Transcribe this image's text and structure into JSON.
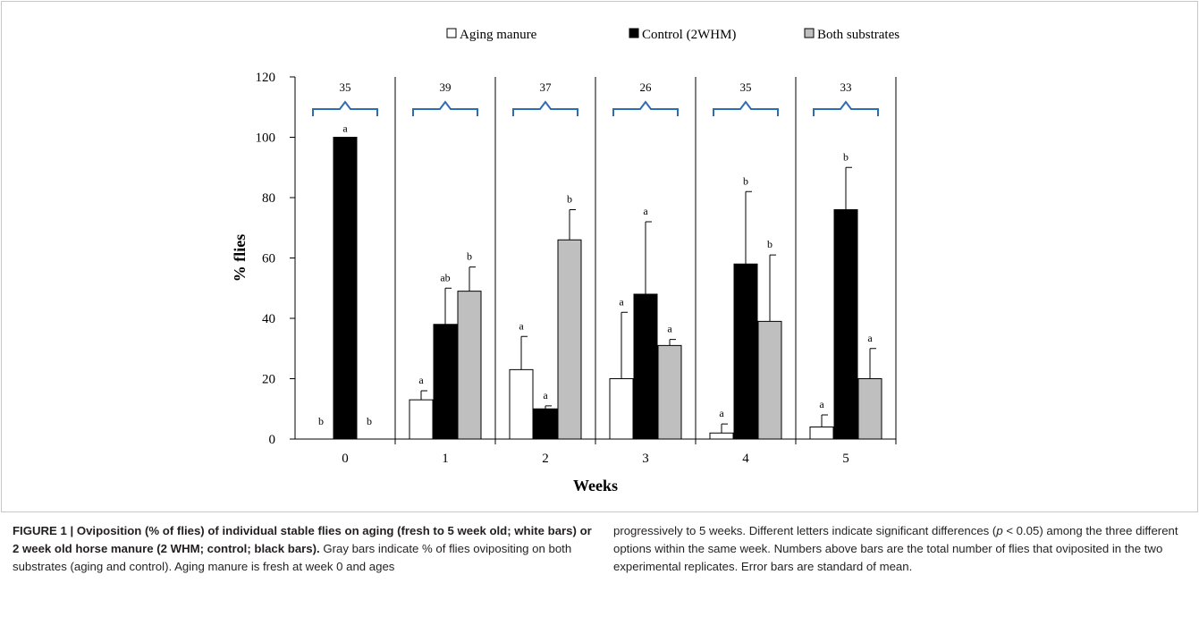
{
  "chart_data": {
    "type": "bar",
    "xlabel": "Weeks",
    "ylabel": "% flies",
    "ylim": [
      0,
      120
    ],
    "yticks": [
      0,
      20,
      40,
      60,
      80,
      100,
      120
    ],
    "categories": [
      "0",
      "1",
      "2",
      "3",
      "4",
      "5"
    ],
    "series": [
      {
        "name": "Aging manure",
        "color": "#ffffff",
        "values": [
          0,
          13,
          23,
          20,
          2,
          4
        ],
        "errors": [
          0,
          3,
          11,
          22,
          3,
          4
        ],
        "letters": [
          "b",
          "a",
          "a",
          "a",
          "a",
          "a"
        ]
      },
      {
        "name": "Control (2WHM)",
        "color": "#000000",
        "values": [
          100,
          38,
          10,
          48,
          58,
          76
        ],
        "errors": [
          0,
          12,
          1,
          24,
          24,
          14
        ],
        "letters": [
          "a",
          "ab",
          "a",
          "a",
          "b",
          "b"
        ]
      },
      {
        "name": "Both substrates",
        "color": "#bfbfbf",
        "values": [
          0,
          49,
          66,
          31,
          39,
          20
        ],
        "errors": [
          0,
          8,
          10,
          2,
          22,
          10
        ],
        "letters": [
          "b",
          "b",
          "b",
          "a",
          "b",
          "a"
        ]
      }
    ],
    "group_totals": [
      "35",
      "39",
      "37",
      "26",
      "35",
      "33"
    ],
    "legend_position": "top",
    "grid": false
  },
  "caption": {
    "lead": "FIGURE 1 | Oviposition (% of flies) of individual stable flies on aging (fresh to 5 week old; white bars) or 2 week old horse manure (2 WHM; control; black bars).",
    "left_rest": " Gray bars indicate % of flies ovipositing on both substrates (aging and control). Aging manure is fresh at week 0 and ages",
    "right_a": "progressively to 5 weeks. Different letters indicate significant differences (",
    "right_p": "p",
    "right_b": " < 0.05) among the three different options within the same week. Numbers above bars are the total number of flies that oviposited in the two experimental replicates. Error bars are standard of mean."
  }
}
